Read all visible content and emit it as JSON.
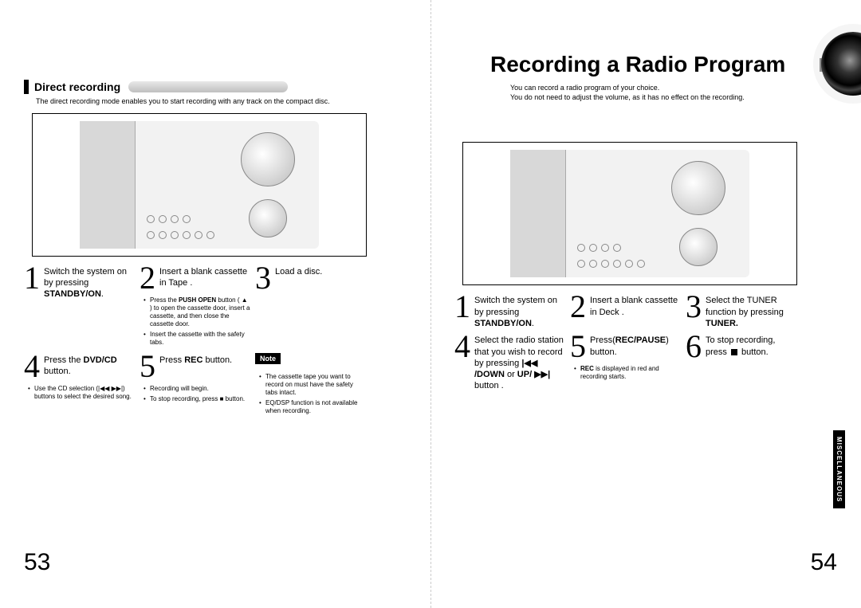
{
  "language_tag": "ENG",
  "side_tab": "MISCELLANEOUS",
  "page_left_num": "53",
  "page_right_num": "54",
  "left": {
    "section_title": "Direct recording",
    "section_sub": "The direct recording mode enables you to start recording with any track on the compact disc.",
    "steps": [
      {
        "num": "1",
        "text_pre": "Switch the system on by pressing ",
        "text_strong": "STANDBY/ON",
        "text_post": "."
      },
      {
        "num": "2",
        "text_pre": "Insert a blank cassette in Tape .",
        "notes": [
          "Press the PUSH OPEN button ( ▲ ) to open the cassette door, insert a cassette, and then close the cassette door.",
          "Insert the cassette with the safety tabs."
        ]
      },
      {
        "num": "3",
        "text_pre": "Load a disc."
      },
      {
        "num": "4",
        "text_pre": "Press the ",
        "text_strong": "DVD/CD",
        "text_post": " button.",
        "notes": [
          "Use the CD selection (|◀◀  ▶▶|) buttons to select the desired song."
        ]
      },
      {
        "num": "5",
        "text_pre": "Press ",
        "text_strong": "REC",
        "text_post": " button.",
        "notes": [
          "Recording will begin.",
          "To stop recording, press ■ button."
        ]
      }
    ],
    "note_label": "Note",
    "note_items": [
      "The cassette tape you want to record on must have the safety tabs intact.",
      "EQ/DSP function is not available when recording."
    ]
  },
  "right": {
    "page_title": "Recording a Radio Program",
    "intro": [
      "You can record a radio program of your choice.",
      "You do not need to adjust the volume, as it has no effect on the recording."
    ],
    "steps": [
      {
        "num": "1",
        "text_pre": "Switch the system on by pressing ",
        "text_strong": "STANDBY/ON",
        "text_post": "."
      },
      {
        "num": "2",
        "text_pre": "Insert a blank cassette in Deck ."
      },
      {
        "num": "3",
        "text_pre": "Select the TUNER function by pressing ",
        "text_strong": "TUNER."
      },
      {
        "num": "4",
        "text_pre": "Select the radio station that you wish to record by pressing ",
        "text_strong": "|◀◀ /DOWN",
        "text_mid": " or ",
        "text_strong2": "UP/ ▶▶|",
        "text_post": " button ."
      },
      {
        "num": "5",
        "text_pre": "Press(",
        "text_strong": "REC/PAUSE",
        "text_post": ") button.",
        "notes": [
          "REC is displayed in red and recording starts."
        ]
      },
      {
        "num": "6",
        "text_pre": "To stop recording, press ",
        "icon": "stop",
        "text_post": " button."
      }
    ]
  }
}
